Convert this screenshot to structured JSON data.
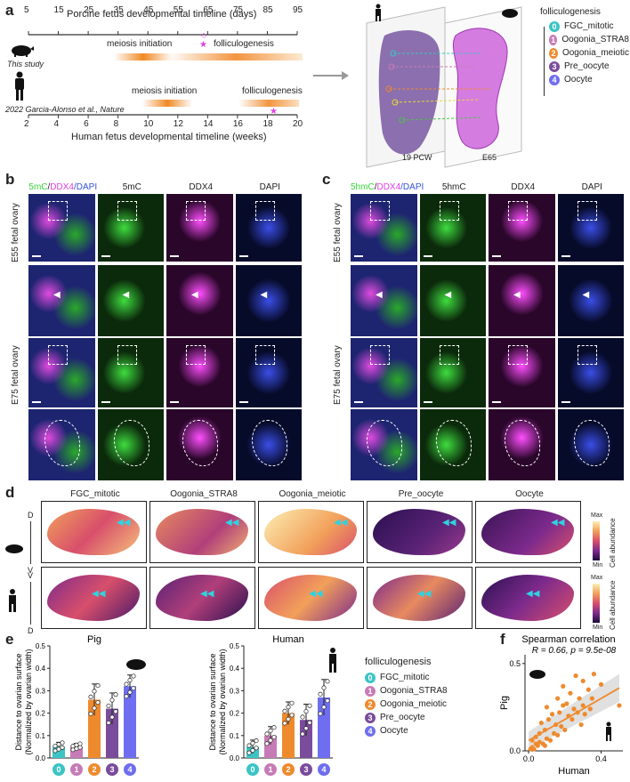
{
  "panel_labels": {
    "a": "a",
    "b": "b",
    "c": "c",
    "d": "d",
    "e": "e",
    "f": "f"
  },
  "timeline": {
    "porcine_title": "Porcine fetus developmental timeline (days)",
    "porcine_ticks": [
      "5",
      "15",
      "25",
      "35",
      "45",
      "55",
      "65",
      "75",
      "85",
      "95"
    ],
    "human_title": "Human fetus developmental timeline (weeks)",
    "human_ticks": [
      "2",
      "4",
      "6",
      "8",
      "10",
      "12",
      "14",
      "16",
      "18",
      "20"
    ],
    "this_study": "This study",
    "citation": "2022 Garcia-Alonso et al., Nature",
    "meiosis": "meiosis initiation",
    "folliculogenesis": "folliculogenesis"
  },
  "section_labels": {
    "left": "19 PCW",
    "right": "E65"
  },
  "stages": {
    "title": "folliculogenesis",
    "items": [
      {
        "num": "0",
        "label": "FGC_mitotic",
        "color": "#3cc4c4"
      },
      {
        "num": "1",
        "label": "Oogonia_STRA8",
        "color": "#c77bb6"
      },
      {
        "num": "2",
        "label": "Oogonia_meiotic",
        "color": "#ee8a2e"
      },
      {
        "num": "3",
        "label": "Pre_oocyte",
        "color": "#7a4c9c"
      },
      {
        "num": "4",
        "label": "Oocyte",
        "color": "#6f6ef0"
      }
    ]
  },
  "panel_b": {
    "headers": [
      {
        "parts": [
          {
            "t": "5mC",
            "c": "#37d337"
          },
          {
            "t": "/",
            "c": "#222"
          },
          {
            "t": "DDX4",
            "c": "#e23ee2"
          },
          {
            "t": "/DAPI",
            "c": "#3450e0"
          }
        ]
      },
      {
        "parts": [
          {
            "t": "5mC",
            "c": "#222"
          }
        ]
      },
      {
        "parts": [
          {
            "t": "DDX4",
            "c": "#222"
          }
        ]
      },
      {
        "parts": [
          {
            "t": "DAPI",
            "c": "#222"
          }
        ]
      }
    ],
    "rows": [
      "E55 fetal ovary",
      "E75 fetal ovary"
    ]
  },
  "panel_c": {
    "headers": [
      {
        "parts": [
          {
            "t": "5hmC",
            "c": "#37d337"
          },
          {
            "t": "/",
            "c": "#222"
          },
          {
            "t": "DDX4",
            "c": "#e23ee2"
          },
          {
            "t": "/DAPI",
            "c": "#3450e0"
          }
        ]
      },
      {
        "parts": [
          {
            "t": "5hmC",
            "c": "#222"
          }
        ]
      },
      {
        "parts": [
          {
            "t": "DDX4",
            "c": "#222"
          }
        ]
      },
      {
        "parts": [
          {
            "t": "DAPI",
            "c": "#222"
          }
        ]
      }
    ],
    "rows": [
      "E55 fetal ovary",
      "E75 fetal ovary"
    ]
  },
  "panel_d": {
    "columns": [
      "FGC_mitotic",
      "Oogonia_STRA8",
      "Oogonia_meiotic",
      "Pre_oocyte",
      "Oocyte"
    ],
    "colorbar_title": "Cell abundance",
    "colorbar_max": "Max",
    "colorbar_min": "Min",
    "pig_axis": {
      "top": "D",
      "bottom": "V"
    },
    "human_axis": {
      "top": "V",
      "bottom": "D"
    }
  },
  "chart_data": [
    {
      "type": "bar",
      "title": "Pig",
      "ylabel": "Distance to ovarian surface (Normalized by ovarian width)",
      "categories": [
        "0",
        "1",
        "2",
        "3",
        "4"
      ],
      "values": [
        0.05,
        0.05,
        0.26,
        0.22,
        0.32
      ],
      "errors": [
        0.02,
        0.015,
        0.07,
        0.07,
        0.05
      ],
      "ylim": [
        0,
        0.5
      ],
      "yticks": [
        "0.0",
        "0.1",
        "0.2",
        "0.3",
        "0.4",
        "0.5"
      ],
      "colors": [
        "#3cc4c4",
        "#c77bb6",
        "#ee8a2e",
        "#7a4c9c",
        "#6f6ef0"
      ]
    },
    {
      "type": "bar",
      "title": "Human",
      "ylabel": "Distance to ovarian surface (Normalized by ovarian width)",
      "categories": [
        "0",
        "1",
        "2",
        "3",
        "4"
      ],
      "values": [
        0.05,
        0.1,
        0.2,
        0.17,
        0.27
      ],
      "errors": [
        0.03,
        0.04,
        0.05,
        0.07,
        0.08
      ],
      "ylim": [
        0,
        0.5
      ],
      "yticks": [
        "0.0",
        "0.1",
        "0.2",
        "0.3",
        "0.4",
        "0.5"
      ],
      "colors": [
        "#3cc4c4",
        "#c77bb6",
        "#ee8a2e",
        "#7a4c9c",
        "#6f6ef0"
      ]
    },
    {
      "type": "scatter",
      "title": "Spearman correlation",
      "annotation": "R = 0.66, p = 9.5e-08",
      "xlabel": "Human",
      "ylabel": "Pig",
      "xlim": [
        -0.02,
        0.52
      ],
      "ylim": [
        0,
        0.55
      ],
      "xticks": [
        "0.0",
        "0.4"
      ],
      "yticks": [
        "0.0",
        "0.5"
      ],
      "points": [
        [
          0.01,
          0.01
        ],
        [
          0.02,
          0.02
        ],
        [
          0.03,
          0.01
        ],
        [
          0.05,
          0.03
        ],
        [
          0.06,
          0.05
        ],
        [
          0.02,
          0.06
        ],
        [
          0.08,
          0.04
        ],
        [
          0.04,
          0.08
        ],
        [
          0.1,
          0.07
        ],
        [
          0.12,
          0.06
        ],
        [
          0.09,
          0.12
        ],
        [
          0.14,
          0.1
        ],
        [
          0.15,
          0.15
        ],
        [
          0.11,
          0.18
        ],
        [
          0.18,
          0.14
        ],
        [
          0.2,
          0.12
        ],
        [
          0.17,
          0.22
        ],
        [
          0.22,
          0.2
        ],
        [
          0.24,
          0.18
        ],
        [
          0.21,
          0.27
        ],
        [
          0.25,
          0.24
        ],
        [
          0.27,
          0.22
        ],
        [
          0.28,
          0.3
        ],
        [
          0.3,
          0.26
        ],
        [
          0.23,
          0.33
        ],
        [
          0.31,
          0.21
        ],
        [
          0.16,
          0.3
        ],
        [
          0.33,
          0.35
        ],
        [
          0.35,
          0.3
        ],
        [
          0.19,
          0.37
        ],
        [
          0.3,
          0.4
        ],
        [
          0.26,
          0.43
        ],
        [
          0.36,
          0.44
        ],
        [
          0.4,
          0.38
        ],
        [
          0.1,
          0.25
        ],
        [
          0.13,
          0.21
        ],
        [
          0.07,
          0.16
        ],
        [
          0.29,
          0.15
        ],
        [
          0.34,
          0.24
        ],
        [
          0.5,
          0.26
        ],
        [
          0.06,
          0.1
        ],
        [
          0.04,
          0.04
        ],
        [
          0.09,
          0.03
        ],
        [
          0.16,
          0.09
        ],
        [
          0.19,
          0.26
        ]
      ],
      "fit": [
        [
          0.0,
          0.06
        ],
        [
          0.5,
          0.36
        ]
      ]
    }
  ]
}
